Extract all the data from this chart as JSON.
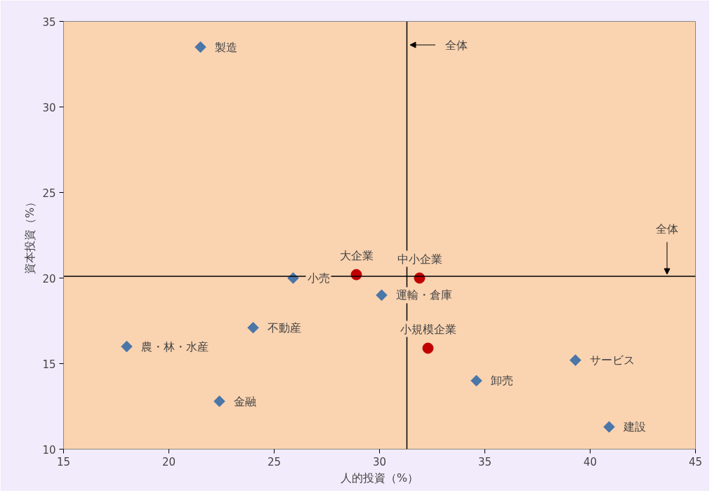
{
  "chart_data": {
    "type": "scatter",
    "xlabel": "人的投資（%）",
    "ylabel": "資本投資（%）",
    "xlim": [
      15,
      45
    ],
    "xticks": [
      15,
      20,
      25,
      30,
      35,
      40,
      45
    ],
    "ylim": [
      10,
      35
    ],
    "yticks": [
      10,
      15,
      20,
      25,
      30,
      35
    ],
    "grid": false,
    "series": [
      {
        "color": "#4a76a8",
        "marker": "diamond",
        "x": [
          21.5,
          25.9,
          30.1,
          24.0,
          18.0,
          34.6,
          39.3,
          40.9,
          22.4
        ],
        "values": [
          33.5,
          20.0,
          19.0,
          17.1,
          16.0,
          14.0,
          15.2,
          11.3,
          12.8
        ]
      },
      {
        "color": "#c00000",
        "marker": "circle",
        "x": [
          28.9,
          31.9,
          32.3
        ],
        "values": [
          20.2,
          20.0,
          15.9
        ]
      }
    ],
    "ref_lines": [
      {
        "axis": "x",
        "value": 31.3,
        "label": "全体",
        "color": "#000000"
      },
      {
        "axis": "y",
        "value": 20.1,
        "label": "全体",
        "color": "#000000"
      }
    ],
    "annotations": [
      {
        "text": "製造",
        "x": 21.5,
        "y": 33.5
      },
      {
        "text": "小売",
        "x": 25.9,
        "y": 20.0
      },
      {
        "text": "運輸・倉庫",
        "x": 30.1,
        "y": 19.0
      },
      {
        "text": "不動産",
        "x": 24.0,
        "y": 17.1
      },
      {
        "text": "農・林・水産",
        "x": 18.0,
        "y": 16.0
      },
      {
        "text": "卸売",
        "x": 34.6,
        "y": 14.0
      },
      {
        "text": "サービス",
        "x": 39.3,
        "y": 15.2
      },
      {
        "text": "建設",
        "x": 40.9,
        "y": 11.3
      },
      {
        "text": "金融",
        "x": 22.4,
        "y": 12.8
      },
      {
        "text": "大企業",
        "x": 28.9,
        "y": 20.2
      },
      {
        "text": "中小企業",
        "x": 31.9,
        "y": 20.0
      },
      {
        "text": "小規模企業",
        "x": 32.3,
        "y": 15.9
      }
    ]
  }
}
